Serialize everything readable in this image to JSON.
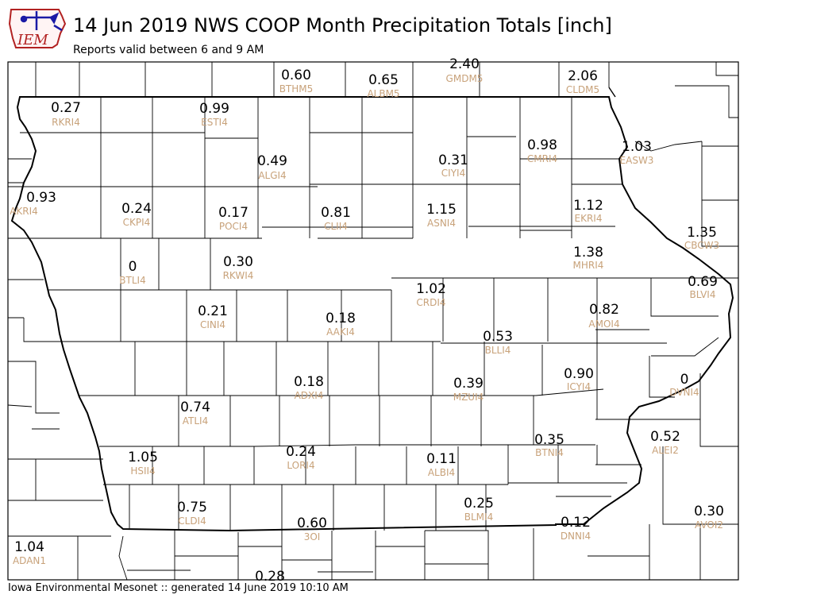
{
  "header": {
    "logo_text": "IEM",
    "title": "14 Jun 2019 NWS COOP Month Precipitation Totals [inch]",
    "subtitle": "Reports valid between 6 and 9 AM"
  },
  "footer": {
    "text": "Iowa Environmental Mesonet :: generated 14 June 2019 10:10 AM"
  },
  "colors": {
    "value_text": "#000000",
    "station_text": "#c8a27a",
    "county_lines": "#000000",
    "logo_red": "#b22222",
    "logo_blue": "#1a1aa6"
  },
  "stations": [
    {
      "id": "BTHM5",
      "value": "0.60"
    },
    {
      "id": "ALBM5",
      "value": "0.65"
    },
    {
      "id": "GMDM5",
      "value": "2.40"
    },
    {
      "id": "CLDM5",
      "value": "2.06"
    },
    {
      "id": "RKRI4",
      "value": "0.27"
    },
    {
      "id": "ESTI4",
      "value": "0.99"
    },
    {
      "id": "ALGI4",
      "value": "0.49"
    },
    {
      "id": "CIYI4",
      "value": "0.31"
    },
    {
      "id": "CMRI4",
      "value": "0.98"
    },
    {
      "id": "EASW3",
      "value": "1.03"
    },
    {
      "id": "AKRI4",
      "value": "0.93"
    },
    {
      "id": "CKPI4",
      "value": "0.24"
    },
    {
      "id": "POCI4",
      "value": "0.17"
    },
    {
      "id": "CLII4",
      "value": "0.81"
    },
    {
      "id": "ASNI4",
      "value": "1.15"
    },
    {
      "id": "EKRI4",
      "value": "1.12"
    },
    {
      "id": "CBCW3",
      "value": "1.35"
    },
    {
      "id": "BTLI4",
      "value": "0"
    },
    {
      "id": "RKWI4",
      "value": "0.30"
    },
    {
      "id": "MHRI4",
      "value": "1.38"
    },
    {
      "id": "BLVI4",
      "value": "0.69"
    },
    {
      "id": "CRDI4",
      "value": "1.02"
    },
    {
      "id": "CINI4",
      "value": "0.21"
    },
    {
      "id": "AAKI4",
      "value": "0.18"
    },
    {
      "id": "AMOI4",
      "value": "0.82"
    },
    {
      "id": "BLLI4",
      "value": "0.53"
    },
    {
      "id": "ADXI4",
      "value": "0.18"
    },
    {
      "id": "MZUI4",
      "value": "0.39"
    },
    {
      "id": "ICYI4",
      "value": "0.90"
    },
    {
      "id": "DVNI4",
      "value": "0"
    },
    {
      "id": "ATLI4",
      "value": "0.74"
    },
    {
      "id": "BTNI4",
      "value": "0.35"
    },
    {
      "id": "ALEI2",
      "value": "0.52"
    },
    {
      "id": "HSII4",
      "value": "1.05"
    },
    {
      "id": "LORI4",
      "value": "0.24"
    },
    {
      "id": "ALBI4",
      "value": "0.11"
    },
    {
      "id": "CLDI4",
      "value": "0.75"
    },
    {
      "id": "BLMI4",
      "value": "0.25"
    },
    {
      "id": "AVOI2",
      "value": "0.30"
    },
    {
      "id": "3OI",
      "value": "0.60"
    },
    {
      "id": "DNNI4",
      "value": "0.12"
    },
    {
      "id": "ADAN1",
      "value": "1.04"
    },
    {
      "id": "",
      "value": "0.28"
    }
  ]
}
